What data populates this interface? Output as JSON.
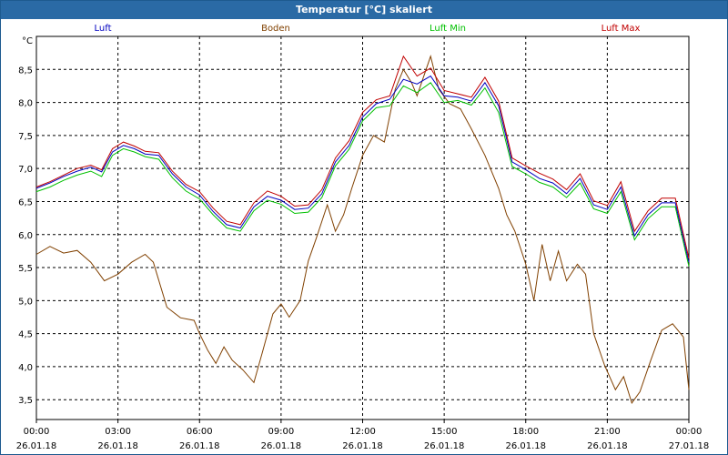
{
  "window": {
    "title": "Temperatur [°C] skaliert"
  },
  "chart_data": {
    "type": "line",
    "title": "Temperatur [°C] skaliert",
    "ylabel": "°C",
    "xlabel": "",
    "ylim": [
      3.2,
      9.0
    ],
    "yticks": [
      3.5,
      4.0,
      4.5,
      5.0,
      5.5,
      6.0,
      6.5,
      7.0,
      7.5,
      8.0,
      8.5
    ],
    "ytick_labels": [
      "3,5",
      "4,0",
      "4,5",
      "5,0",
      "5,5",
      "6,0",
      "6,5",
      "7,0",
      "7,5",
      "8,0",
      "8,5"
    ],
    "xlim": [
      0,
      24
    ],
    "xticks": [
      0,
      3,
      6,
      9,
      12,
      15,
      18,
      21,
      24
    ],
    "xtick_times": [
      "00:00",
      "03:00",
      "06:00",
      "09:00",
      "12:00",
      "15:00",
      "18:00",
      "21:00",
      "00:00"
    ],
    "xtick_dates": [
      "26.01.18",
      "26.01.18",
      "26.01.18",
      "26.01.18",
      "26.01.18",
      "26.01.18",
      "26.01.18",
      "26.01.18",
      "27.01.18"
    ],
    "grid": true,
    "legend_position": "top",
    "series": [
      {
        "name": "Luft",
        "color": "#0000c0",
        "points": [
          [
            0,
            6.7
          ],
          [
            0.5,
            6.78
          ],
          [
            1,
            6.88
          ],
          [
            1.5,
            6.96
          ],
          [
            2,
            7.02
          ],
          [
            2.4,
            6.95
          ],
          [
            2.8,
            7.25
          ],
          [
            3.2,
            7.35
          ],
          [
            3.6,
            7.3
          ],
          [
            4,
            7.22
          ],
          [
            4.5,
            7.2
          ],
          [
            5,
            6.92
          ],
          [
            5.5,
            6.72
          ],
          [
            6,
            6.6
          ],
          [
            6.5,
            6.35
          ],
          [
            7,
            6.15
          ],
          [
            7.5,
            6.1
          ],
          [
            8,
            6.42
          ],
          [
            8.5,
            6.58
          ],
          [
            9,
            6.52
          ],
          [
            9.5,
            6.38
          ],
          [
            10,
            6.4
          ],
          [
            10.5,
            6.62
          ],
          [
            11,
            7.1
          ],
          [
            11.5,
            7.35
          ],
          [
            12,
            7.78
          ],
          [
            12.5,
            7.98
          ],
          [
            13,
            8.05
          ],
          [
            13.5,
            8.35
          ],
          [
            14,
            8.28
          ],
          [
            14.5,
            8.4
          ],
          [
            15,
            8.1
          ],
          [
            15.5,
            8.08
          ],
          [
            16,
            8.02
          ],
          [
            16.5,
            8.3
          ],
          [
            17,
            7.95
          ],
          [
            17.5,
            7.1
          ],
          [
            18,
            6.98
          ],
          [
            18.5,
            6.85
          ],
          [
            19,
            6.78
          ],
          [
            19.5,
            6.62
          ],
          [
            20,
            6.85
          ],
          [
            20.5,
            6.45
          ],
          [
            21,
            6.38
          ],
          [
            21.5,
            6.72
          ],
          [
            22,
            5.98
          ],
          [
            22.5,
            6.3
          ],
          [
            23,
            6.48
          ],
          [
            23.5,
            6.48
          ],
          [
            24,
            5.58
          ]
        ]
      },
      {
        "name": "Boden",
        "color": "#804000",
        "points": [
          [
            0,
            5.7
          ],
          [
            0.5,
            5.82
          ],
          [
            1,
            5.72
          ],
          [
            1.5,
            5.76
          ],
          [
            2,
            5.58
          ],
          [
            2.5,
            5.3
          ],
          [
            3,
            5.4
          ],
          [
            3.5,
            5.58
          ],
          [
            4,
            5.7
          ],
          [
            4.3,
            5.58
          ],
          [
            4.8,
            4.9
          ],
          [
            5.3,
            4.74
          ],
          [
            5.8,
            4.7
          ],
          [
            6,
            4.5
          ],
          [
            6.3,
            4.25
          ],
          [
            6.6,
            4.05
          ],
          [
            6.9,
            4.3
          ],
          [
            7.2,
            4.1
          ],
          [
            7.6,
            3.95
          ],
          [
            8,
            3.76
          ],
          [
            8.3,
            4.2
          ],
          [
            8.7,
            4.8
          ],
          [
            9,
            4.95
          ],
          [
            9.3,
            4.75
          ],
          [
            9.7,
            5.0
          ],
          [
            10,
            5.6
          ],
          [
            10.3,
            5.95
          ],
          [
            10.7,
            6.45
          ],
          [
            11,
            6.05
          ],
          [
            11.3,
            6.3
          ],
          [
            11.6,
            6.7
          ],
          [
            12,
            7.2
          ],
          [
            12.4,
            7.5
          ],
          [
            12.8,
            7.4
          ],
          [
            13.2,
            8.2
          ],
          [
            13.5,
            8.5
          ],
          [
            13.8,
            8.3
          ],
          [
            14,
            8.1
          ],
          [
            14.5,
            8.7
          ],
          [
            14.8,
            8.2
          ],
          [
            15.2,
            7.98
          ],
          [
            15.6,
            7.9
          ],
          [
            16,
            7.6
          ],
          [
            16.5,
            7.2
          ],
          [
            17,
            6.7
          ],
          [
            17.3,
            6.3
          ],
          [
            17.6,
            6.05
          ],
          [
            18,
            5.55
          ],
          [
            18.3,
            5.0
          ],
          [
            18.6,
            5.85
          ],
          [
            18.9,
            5.3
          ],
          [
            19.2,
            5.75
          ],
          [
            19.5,
            5.3
          ],
          [
            19.9,
            5.55
          ],
          [
            20.2,
            5.4
          ],
          [
            20.5,
            4.5
          ],
          [
            20.9,
            4.02
          ],
          [
            21.3,
            3.65
          ],
          [
            21.6,
            3.85
          ],
          [
            21.9,
            3.45
          ],
          [
            22.2,
            3.62
          ],
          [
            22.6,
            4.1
          ],
          [
            23,
            4.55
          ],
          [
            23.4,
            4.65
          ],
          [
            23.8,
            4.45
          ],
          [
            24,
            3.65
          ]
        ]
      },
      {
        "name": "Luft Min",
        "color": "#00c000",
        "points": [
          [
            0,
            6.65
          ],
          [
            0.5,
            6.72
          ],
          [
            1,
            6.82
          ],
          [
            1.5,
            6.9
          ],
          [
            2,
            6.96
          ],
          [
            2.4,
            6.88
          ],
          [
            2.8,
            7.2
          ],
          [
            3.2,
            7.3
          ],
          [
            3.6,
            7.25
          ],
          [
            4,
            7.18
          ],
          [
            4.5,
            7.14
          ],
          [
            5,
            6.86
          ],
          [
            5.5,
            6.66
          ],
          [
            6,
            6.54
          ],
          [
            6.5,
            6.3
          ],
          [
            7,
            6.1
          ],
          [
            7.5,
            6.05
          ],
          [
            8,
            6.36
          ],
          [
            8.5,
            6.52
          ],
          [
            9,
            6.46
          ],
          [
            9.5,
            6.32
          ],
          [
            10,
            6.34
          ],
          [
            10.5,
            6.56
          ],
          [
            11,
            7.04
          ],
          [
            11.5,
            7.29
          ],
          [
            12,
            7.72
          ],
          [
            12.5,
            7.92
          ],
          [
            13,
            7.95
          ],
          [
            13.5,
            8.25
          ],
          [
            14,
            8.15
          ],
          [
            14.5,
            8.3
          ],
          [
            15,
            8.0
          ],
          [
            15.5,
            8.03
          ],
          [
            16,
            7.96
          ],
          [
            16.5,
            8.22
          ],
          [
            17,
            7.85
          ],
          [
            17.5,
            7.03
          ],
          [
            18,
            6.92
          ],
          [
            18.5,
            6.79
          ],
          [
            19,
            6.72
          ],
          [
            19.5,
            6.56
          ],
          [
            20,
            6.78
          ],
          [
            20.5,
            6.39
          ],
          [
            21,
            6.32
          ],
          [
            21.5,
            6.65
          ],
          [
            22,
            5.92
          ],
          [
            22.5,
            6.24
          ],
          [
            23,
            6.42
          ],
          [
            23.5,
            6.42
          ],
          [
            24,
            5.52
          ]
        ]
      },
      {
        "name": "Luft Max",
        "color": "#c00000",
        "points": [
          [
            0,
            6.72
          ],
          [
            0.5,
            6.8
          ],
          [
            1,
            6.9
          ],
          [
            1.5,
            7.0
          ],
          [
            2,
            7.05
          ],
          [
            2.4,
            6.98
          ],
          [
            2.8,
            7.3
          ],
          [
            3.2,
            7.4
          ],
          [
            3.6,
            7.34
          ],
          [
            4,
            7.26
          ],
          [
            4.5,
            7.24
          ],
          [
            5,
            6.96
          ],
          [
            5.5,
            6.76
          ],
          [
            6,
            6.65
          ],
          [
            6.5,
            6.4
          ],
          [
            7,
            6.2
          ],
          [
            7.5,
            6.15
          ],
          [
            8,
            6.48
          ],
          [
            8.5,
            6.66
          ],
          [
            9,
            6.58
          ],
          [
            9.5,
            6.43
          ],
          [
            10,
            6.45
          ],
          [
            10.5,
            6.68
          ],
          [
            11,
            7.16
          ],
          [
            11.5,
            7.42
          ],
          [
            12,
            7.85
          ],
          [
            12.5,
            8.04
          ],
          [
            13,
            8.1
          ],
          [
            13.5,
            8.7
          ],
          [
            14,
            8.4
          ],
          [
            14.5,
            8.52
          ],
          [
            15,
            8.18
          ],
          [
            15.5,
            8.13
          ],
          [
            16,
            8.08
          ],
          [
            16.5,
            8.38
          ],
          [
            17,
            8.02
          ],
          [
            17.5,
            7.16
          ],
          [
            18,
            7.04
          ],
          [
            18.5,
            6.93
          ],
          [
            19,
            6.84
          ],
          [
            19.5,
            6.68
          ],
          [
            20,
            6.92
          ],
          [
            20.5,
            6.51
          ],
          [
            21,
            6.44
          ],
          [
            21.5,
            6.8
          ],
          [
            22,
            6.05
          ],
          [
            22.5,
            6.36
          ],
          [
            23,
            6.55
          ],
          [
            23.5,
            6.55
          ],
          [
            24,
            5.64
          ]
        ]
      }
    ]
  }
}
